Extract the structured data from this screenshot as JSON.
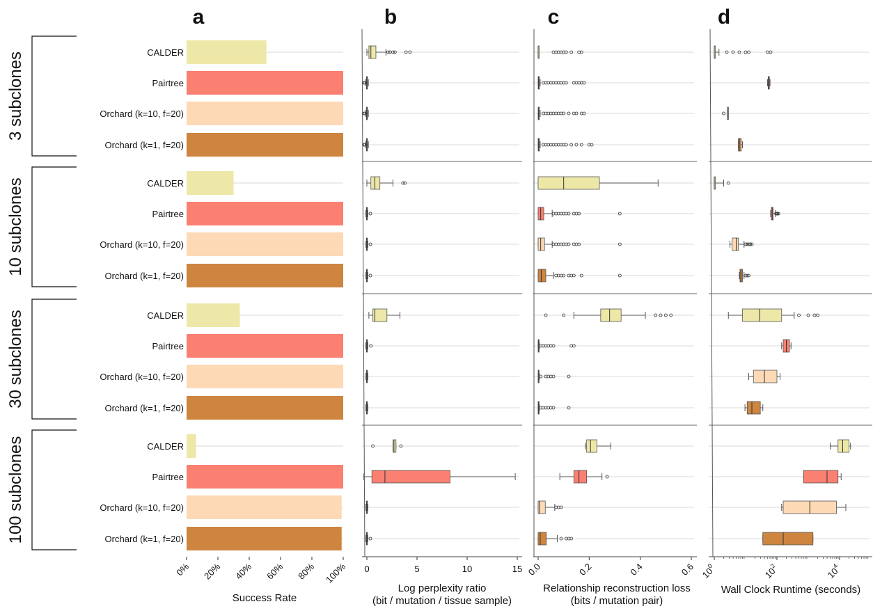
{
  "panel_letters": [
    "a",
    "b",
    "c",
    "d"
  ],
  "group_labels": [
    "3 subclones",
    "10 subclones",
    "30 subclones",
    "100 subclones"
  ],
  "method_labels": [
    "CALDER",
    "Pairtree",
    "Orchard (k=10, f=20)",
    "Orchard (k=1, f=20)"
  ],
  "colors": {
    "CALDER": "#ede8a8",
    "Pairtree": "#fa8072",
    "Orchard (k=10, f=20)": "#fdd9b5",
    "Orchard (k=1, f=20)": "#cd853f"
  },
  "axes": {
    "a": {
      "title": "Success Rate",
      "ticks": [
        "0%",
        "20%",
        "40%",
        "60%",
        "80%",
        "100%"
      ]
    },
    "b": {
      "title_line1": "Log perplexity ratio",
      "title_line2": "(bit / mutation / tissue sample)",
      "ticks": [
        "0",
        "5",
        "10",
        "15"
      ]
    },
    "c": {
      "title_line1": "Relationship reconstruction loss",
      "title_line2": "(bits / mutation pair)",
      "ticks": [
        "0.0",
        "0.2",
        "0.4",
        "0.6"
      ]
    },
    "d": {
      "title_line1": "Wall Clock Runtime (seconds)",
      "tick_base": "10",
      "tick_exps": [
        "0",
        "2",
        "4"
      ]
    }
  },
  "chart_data": [
    {
      "panel": "a",
      "type": "bar",
      "orientation": "horizontal",
      "xlabel": "Success Rate",
      "xlim": [
        0,
        100
      ],
      "groups": [
        "3 subclones",
        "10 subclones",
        "30 subclones",
        "100 subclones"
      ],
      "categories": [
        "CALDER",
        "Pairtree",
        "Orchard (k=10, f=20)",
        "Orchard (k=1, f=20)"
      ],
      "values": [
        [
          51,
          100,
          100,
          100
        ],
        [
          30,
          100,
          100,
          100
        ],
        [
          34,
          100,
          100,
          100
        ],
        [
          6,
          100,
          99,
          99
        ]
      ]
    },
    {
      "panel": "b",
      "type": "box",
      "orientation": "horizontal",
      "xlabel": "Log perplexity ratio (bit / mutation / tissue sample)",
      "xlim": [
        -0.3,
        15
      ],
      "groups": [
        [
          {
            "q1": 0.2,
            "med": 0.4,
            "q3": 0.9,
            "lo": 0.0,
            "hi": 1.9,
            "out": [
              2.1,
              2.3,
              2.6,
              2.8,
              3.9,
              4.3
            ]
          },
          {
            "q1": -0.05,
            "med": 0.0,
            "q3": 0.05,
            "lo": -0.15,
            "hi": 0.15,
            "out": [
              -0.3,
              -0.2
            ]
          },
          {
            "q1": -0.05,
            "med": 0.0,
            "q3": 0.05,
            "lo": -0.15,
            "hi": 0.15,
            "out": [
              -0.3,
              -0.2
            ]
          },
          {
            "q1": -0.05,
            "med": 0.0,
            "q3": 0.05,
            "lo": -0.15,
            "hi": 0.15,
            "out": [
              -0.3,
              -0.2
            ]
          }
        ],
        [
          {
            "q1": 0.4,
            "med": 0.8,
            "q3": 1.3,
            "lo": 0.0,
            "hi": 2.6,
            "out": [
              3.6,
              3.8
            ]
          },
          {
            "q1": -0.05,
            "med": 0.0,
            "q3": 0.05,
            "lo": -0.1,
            "hi": 0.1,
            "out": [
              0.35
            ]
          },
          {
            "q1": -0.05,
            "med": 0.0,
            "q3": 0.05,
            "lo": -0.1,
            "hi": 0.1,
            "out": [
              0.35
            ]
          },
          {
            "q1": -0.05,
            "med": 0.0,
            "q3": 0.05,
            "lo": -0.1,
            "hi": 0.1,
            "out": [
              0.35
            ]
          }
        ],
        [
          {
            "q1": 0.6,
            "med": 0.8,
            "q3": 2.0,
            "lo": 0.2,
            "hi": 3.3,
            "out": []
          },
          {
            "q1": -0.05,
            "med": 0.0,
            "q3": 0.05,
            "lo": -0.1,
            "hi": 0.1,
            "out": [
              0.4
            ]
          },
          {
            "q1": -0.05,
            "med": 0.0,
            "q3": 0.05,
            "lo": -0.1,
            "hi": 0.1,
            "out": []
          },
          {
            "q1": -0.05,
            "med": 0.0,
            "q3": 0.05,
            "lo": -0.1,
            "hi": 0.1,
            "out": []
          }
        ],
        [
          {
            "q1": 2.6,
            "med": 2.7,
            "q3": 2.9,
            "lo": 2.6,
            "hi": 2.9,
            "out": [
              0.6,
              3.4
            ]
          },
          {
            "q1": 0.5,
            "med": 1.8,
            "q3": 8.3,
            "lo": -0.3,
            "hi": 14.8,
            "out": []
          },
          {
            "q1": -0.05,
            "med": 0.0,
            "q3": 0.05,
            "lo": -0.1,
            "hi": 0.1,
            "out": []
          },
          {
            "q1": -0.05,
            "med": 0.0,
            "q3": 0.05,
            "lo": -0.1,
            "hi": 0.1,
            "out": [
              0.35
            ]
          }
        ]
      ]
    },
    {
      "panel": "c",
      "type": "box",
      "orientation": "horizontal",
      "xlabel": "Relationship reconstruction loss (bits / mutation pair)",
      "xlim": [
        0,
        0.6
      ],
      "groups": [
        [
          {
            "q1": 0.0,
            "med": 0.0,
            "q3": 0.0,
            "lo": 0.0,
            "hi": 0.0,
            "out": [
              0.06,
              0.07,
              0.08,
              0.09,
              0.1,
              0.11,
              0.13,
              0.16,
              0.17
            ]
          },
          {
            "q1": 0.0,
            "med": 0.002,
            "q3": 0.005,
            "lo": 0.0,
            "hi": 0.008,
            "out": [
              0.02,
              0.03,
              0.04,
              0.05,
              0.06,
              0.07,
              0.08,
              0.09,
              0.1,
              0.11,
              0.14,
              0.15,
              0.16,
              0.17,
              0.18
            ]
          },
          {
            "q1": 0.0,
            "med": 0.002,
            "q3": 0.005,
            "lo": 0.0,
            "hi": 0.008,
            "out": [
              0.02,
              0.03,
              0.04,
              0.05,
              0.06,
              0.07,
              0.08,
              0.09,
              0.1,
              0.12,
              0.14,
              0.15,
              0.17,
              0.18
            ]
          },
          {
            "q1": 0.0,
            "med": 0.002,
            "q3": 0.005,
            "lo": 0.0,
            "hi": 0.008,
            "out": [
              0.02,
              0.03,
              0.04,
              0.05,
              0.06,
              0.07,
              0.08,
              0.09,
              0.1,
              0.11,
              0.13,
              0.15,
              0.17,
              0.2,
              0.21
            ]
          }
        ],
        [
          {
            "q1": 0.0,
            "med": 0.1,
            "q3": 0.24,
            "lo": 0.0,
            "hi": 0.47,
            "out": []
          },
          {
            "q1": 0.0,
            "med": 0.01,
            "q3": 0.022,
            "lo": 0.0,
            "hi": 0.055,
            "out": [
              0.06,
              0.07,
              0.08,
              0.09,
              0.1,
              0.11,
              0.12,
              0.14,
              0.15,
              0.16,
              0.32
            ]
          },
          {
            "q1": 0.0,
            "med": 0.01,
            "q3": 0.025,
            "lo": 0.0,
            "hi": 0.055,
            "out": [
              0.06,
              0.07,
              0.08,
              0.09,
              0.1,
              0.11,
              0.12,
              0.14,
              0.15,
              0.16,
              0.32
            ]
          },
          {
            "q1": 0.0,
            "med": 0.012,
            "q3": 0.03,
            "lo": 0.0,
            "hi": 0.06,
            "out": [
              0.07,
              0.08,
              0.09,
              0.1,
              0.12,
              0.13,
              0.14,
              0.17,
              0.32
            ]
          }
        ],
        [
          {
            "q1": 0.245,
            "med": 0.28,
            "q3": 0.325,
            "lo": 0.14,
            "hi": 0.42,
            "out": [
              0.03,
              0.1,
              0.46,
              0.48,
              0.5,
              0.52
            ]
          },
          {
            "q1": 0.0,
            "med": 0.001,
            "q3": 0.003,
            "lo": 0.0,
            "hi": 0.005,
            "out": [
              0.01,
              0.02,
              0.03,
              0.04,
              0.05,
              0.06,
              0.13,
              0.14
            ]
          },
          {
            "q1": 0.0,
            "med": 0.001,
            "q3": 0.003,
            "lo": 0.0,
            "hi": 0.005,
            "out": [
              0.01,
              0.03,
              0.04,
              0.05,
              0.06,
              0.12
            ]
          },
          {
            "q1": 0.0,
            "med": 0.001,
            "q3": 0.003,
            "lo": 0.0,
            "hi": 0.005,
            "out": [
              0.01,
              0.02,
              0.03,
              0.04,
              0.05,
              0.06,
              0.12
            ]
          }
        ],
        [
          {
            "q1": 0.19,
            "med": 0.205,
            "q3": 0.23,
            "lo": 0.185,
            "hi": 0.285,
            "out": []
          },
          {
            "q1": 0.14,
            "med": 0.16,
            "q3": 0.19,
            "lo": 0.085,
            "hi": 0.25,
            "out": [
              0.27
            ]
          },
          {
            "q1": 0.0,
            "med": 0.005,
            "q3": 0.028,
            "lo": 0.0,
            "hi": 0.065,
            "out": [
              0.07,
              0.08,
              0.09
            ]
          },
          {
            "q1": 0.0,
            "med": 0.008,
            "q3": 0.032,
            "lo": 0.0,
            "hi": 0.075,
            "out": [
              0.09,
              0.11,
              0.12,
              0.13
            ]
          }
        ]
      ]
    },
    {
      "panel": "d",
      "type": "box",
      "orientation": "horizontal",
      "xscale": "log",
      "xlabel": "Wall Clock Runtime (seconds)",
      "xlim_log10": [
        0,
        5
      ],
      "groups": [
        [
          {
            "q1": 0.0,
            "med": 0.0,
            "q3": 0.0,
            "lo": 0.0,
            "hi": 0.15,
            "out": [
              0.4,
              0.6,
              0.8,
              1.0,
              1.1,
              1.7,
              1.8
            ]
          },
          {
            "q1": 1.72,
            "med": 1.74,
            "q3": 1.76,
            "lo": 1.7,
            "hi": 1.78,
            "out": []
          },
          {
            "q1": 0.42,
            "med": 0.42,
            "q3": 0.42,
            "lo": 0.42,
            "hi": 0.42,
            "out": [
              0.3
            ]
          },
          {
            "q1": 0.77,
            "med": 0.8,
            "q3": 0.86,
            "lo": 0.77,
            "hi": 0.9,
            "out": []
          }
        ],
        [
          {
            "q1": 0.0,
            "med": 0.0,
            "q3": 0.0,
            "lo": 0.0,
            "hi": 0.3,
            "out": [
              0.45
            ]
          },
          {
            "q1": 1.82,
            "med": 1.85,
            "q3": 1.88,
            "lo": 1.8,
            "hi": 1.95,
            "out": [
              1.97,
              2.0,
              2.02,
              2.05
            ]
          },
          {
            "q1": 0.57,
            "med": 0.7,
            "q3": 0.77,
            "lo": 0.5,
            "hi": 0.95,
            "out": [
              1.0,
              1.05,
              1.1,
              1.15,
              1.2
            ]
          },
          {
            "q1": 0.82,
            "med": 0.85,
            "q3": 0.9,
            "lo": 0.8,
            "hi": 0.95,
            "out": [
              1.0,
              1.05,
              1.1
            ]
          }
        ],
        [
          {
            "q1": 0.9,
            "med": 1.45,
            "q3": 2.15,
            "lo": 0.45,
            "hi": 2.55,
            "out": [
              2.7,
              3.0,
              3.2,
              3.3
            ]
          },
          {
            "q1": 2.2,
            "med": 2.3,
            "q3": 2.4,
            "lo": 2.15,
            "hi": 2.45,
            "out": []
          },
          {
            "q1": 1.25,
            "med": 1.6,
            "q3": 2.0,
            "lo": 1.1,
            "hi": 2.1,
            "out": []
          },
          {
            "q1": 1.05,
            "med": 1.2,
            "q3": 1.47,
            "lo": 0.98,
            "hi": 1.55,
            "out": []
          }
        ],
        [
          {
            "q1": 3.95,
            "med": 4.1,
            "q3": 4.3,
            "lo": 3.7,
            "hi": 4.35,
            "out": []
          },
          {
            "q1": 2.85,
            "med": 3.6,
            "q3": 3.95,
            "lo": 2.85,
            "hi": 4.05,
            "out": []
          },
          {
            "q1": 2.2,
            "med": 3.05,
            "q3": 3.9,
            "lo": 2.15,
            "hi": 4.2,
            "out": []
          },
          {
            "q1": 1.55,
            "med": 2.2,
            "q3": 3.15,
            "lo": 1.55,
            "hi": 3.15,
            "out": []
          }
        ]
      ]
    }
  ]
}
